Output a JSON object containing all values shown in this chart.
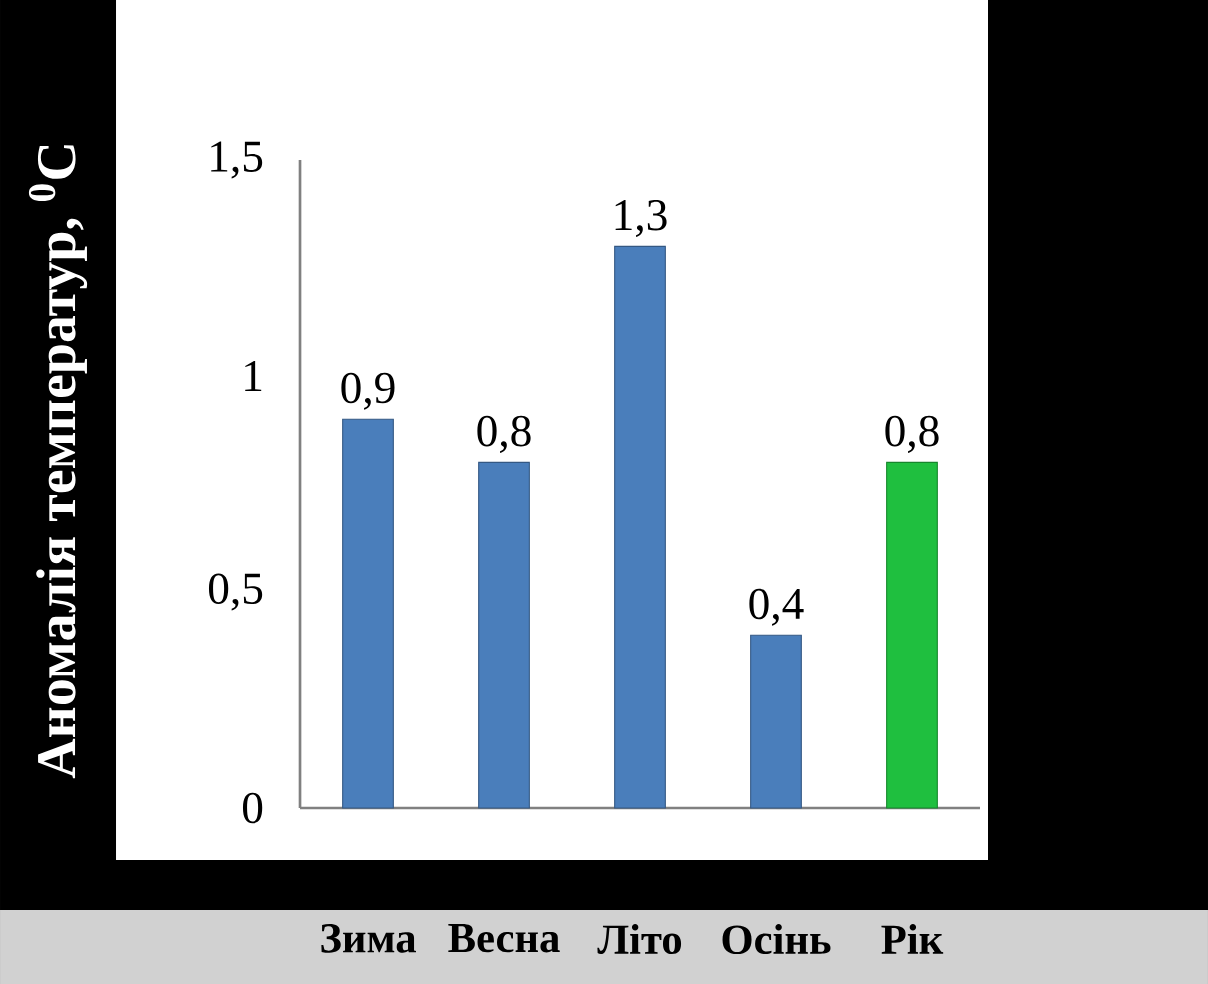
{
  "chart_data": {
    "type": "bar",
    "ylabel": "Аномалія температур, $^{0}$C",
    "categories": [
      "Зима",
      "Весна",
      "Літо",
      "Осінь",
      "Рік"
    ],
    "values": [
      0.9,
      0.8,
      1.3,
      0.4,
      0.8
    ],
    "colors": [
      "#4a7ebb",
      "#4a7ebb",
      "#4a7ebb",
      "#4a7ebb",
      "#1fbf3f"
    ],
    "value_labels": [
      "0,9",
      "0,8",
      "1,3",
      "0,4",
      "0,8"
    ],
    "ylim": [
      0,
      1.5
    ],
    "yticks": [
      {
        "value": 0,
        "label": "0"
      },
      {
        "value": 0.5,
        "label": "0,5"
      },
      {
        "value": 1,
        "label": "1"
      },
      {
        "value": 1.5,
        "label": "1,5"
      }
    ],
    "grid": false
  }
}
